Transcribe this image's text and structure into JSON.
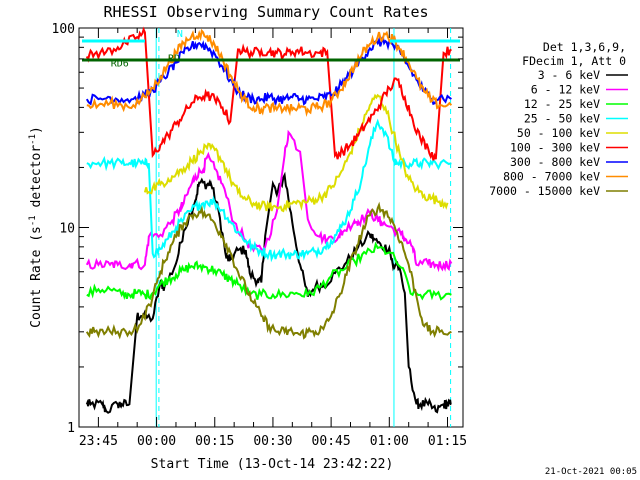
{
  "chart_data": {
    "type": "line",
    "title": "RHESSI Observing Summary Count Rates",
    "xlabel": "Start Time (13-Oct-14 23:42:22)",
    "ylabel": "Count Rate (s",
    "ylabel_sup": "-1",
    "ylabel_rest": " detector",
    "ylabel_close": ")",
    "yscale": "log",
    "ylim": [
      1,
      100
    ],
    "xlim_min": [
      -2,
      97
    ],
    "y_ticks": [
      {
        "v": 1,
        "label": "1"
      },
      {
        "v": 10,
        "label": "10"
      },
      {
        "v": 100,
        "label": "100"
      }
    ],
    "x_ticks": [
      {
        "m": 3,
        "label": "23:45"
      },
      {
        "m": 18,
        "label": "00:00"
      },
      {
        "m": 33,
        "label": "00:15"
      },
      {
        "m": 48,
        "label": "00:30"
      },
      {
        "m": 63,
        "label": "00:45"
      },
      {
        "m": 78,
        "label": "01:00"
      },
      {
        "m": 93,
        "label": "01:15"
      }
    ],
    "legend_header": [
      "Det 1,3,6,9,",
      "FDecim 1, Att 0"
    ],
    "legend_placement": "right",
    "series": [
      {
        "name": "3 - 6 keV",
        "color": "#000000",
        "min": [
          0,
          1,
          4,
          5,
          8,
          9,
          11,
          13,
          14,
          17,
          19,
          20,
          23,
          25,
          28,
          29,
          31,
          32,
          34,
          36,
          37,
          39,
          41,
          42,
          44,
          45,
          46,
          48,
          49,
          51,
          53,
          55,
          57,
          59,
          61,
          64,
          67,
          70,
          73,
          74,
          76,
          78,
          79,
          80,
          82,
          83,
          85,
          86,
          88,
          90,
          92,
          93,
          94
        ],
        "val": [
          1.3,
          1.3,
          1.3,
          1.2,
          1.3,
          1.3,
          1.3,
          3.6,
          3.6,
          3.5,
          5.3,
          5.0,
          6.6,
          9.6,
          13.7,
          16.8,
          16.4,
          16.6,
          12.1,
          7.0,
          6.9,
          7.7,
          7.7,
          5.9,
          5.4,
          5.3,
          9.1,
          16.6,
          14.6,
          18.3,
          10.6,
          6.5,
          4.5,
          5.1,
          5.1,
          5.9,
          6.7,
          8.0,
          9.2,
          8.8,
          8.0,
          7.9,
          6.3,
          6.7,
          4.7,
          2.0,
          1.3,
          1.3,
          1.3,
          1.2,
          1.3,
          1.3,
          1.3
        ]
      },
      {
        "name": "6 - 12 keV",
        "color": "#ff00ff",
        "min": [
          0,
          3,
          6,
          8,
          11,
          12,
          15,
          16,
          19,
          22,
          24,
          25,
          27,
          28,
          30,
          31,
          33,
          35,
          38,
          41,
          43,
          46,
          49,
          51,
          52,
          55,
          57,
          60,
          62,
          65,
          66,
          69,
          70,
          73,
          75,
          76,
          78,
          81,
          82,
          84,
          85,
          88,
          90,
          92,
          94
        ],
        "val": [
          6.5,
          6.5,
          6.5,
          6.5,
          6.5,
          6.6,
          6.5,
          9.0,
          9.2,
          10.8,
          12.3,
          13.2,
          16.5,
          18.2,
          19.4,
          22.5,
          19.7,
          16.5,
          10.6,
          8.6,
          7.7,
          8.0,
          12.0,
          23.0,
          30.0,
          24.0,
          11.0,
          9.0,
          8.7,
          9.1,
          9.5,
          10.8,
          10.7,
          11.8,
          11.0,
          10.6,
          10.1,
          9.3,
          8.8,
          8.0,
          6.5,
          6.6,
          6.5,
          6.5,
          6.6
        ]
      },
      {
        "name": "12 - 25 keV",
        "color": "#00ff00",
        "min": [
          0,
          3,
          6,
          9,
          11,
          13,
          15,
          17,
          19,
          21,
          23,
          25,
          27,
          29,
          31,
          33,
          35,
          37,
          39,
          42,
          45,
          48,
          51,
          54,
          57,
          60,
          63,
          66,
          69,
          72,
          75,
          78,
          81,
          84,
          87,
          90,
          94
        ],
        "val": [
          4.6,
          4.9,
          4.9,
          4.6,
          4.6,
          4.7,
          4.6,
          4.7,
          5.2,
          5.5,
          5.8,
          6.1,
          6.4,
          6.4,
          6.3,
          6.1,
          5.8,
          5.5,
          5.2,
          4.6,
          4.6,
          4.6,
          4.6,
          4.7,
          4.6,
          5.0,
          5.7,
          6.1,
          6.8,
          7.4,
          7.9,
          7.5,
          6.3,
          4.6,
          4.6,
          4.6,
          4.6
        ]
      },
      {
        "name": "25 - 50 keV",
        "color": "#00ffff",
        "min": [
          0,
          3,
          6,
          9,
          11,
          13,
          15,
          16,
          17,
          19,
          21,
          23,
          25,
          27,
          29,
          31,
          33,
          35,
          37,
          39,
          41,
          43,
          45,
          47,
          49,
          51,
          53,
          55,
          57,
          59,
          61,
          63,
          65,
          67,
          69,
          71,
          73,
          75,
          77,
          79,
          80,
          82,
          84,
          86,
          88,
          90,
          94
        ],
        "val": [
          21.0,
          21.1,
          21.0,
          21.0,
          21.0,
          21.0,
          20.8,
          21.0,
          7.4,
          7.8,
          8.8,
          10.0,
          11.0,
          12.2,
          13.0,
          13.5,
          13.3,
          12.2,
          10.7,
          9.5,
          8.6,
          7.9,
          7.6,
          7.4,
          7.3,
          7.4,
          7.3,
          7.4,
          7.4,
          7.6,
          7.9,
          8.6,
          9.6,
          11.2,
          13.8,
          18.0,
          26.0,
          34.0,
          30.0,
          22.0,
          21.0,
          21.1,
          20.8,
          21.0,
          21.0,
          21.0,
          21.0
        ]
      },
      {
        "name": "50 - 100 keV",
        "color": "#dddd00",
        "min": [
          15,
          17,
          19,
          21,
          23,
          25,
          27,
          29,
          31,
          33,
          35,
          37,
          39,
          41,
          43,
          45,
          47,
          49,
          51,
          53,
          55,
          57,
          59,
          61,
          63,
          65,
          67,
          69,
          71,
          73,
          75,
          77,
          79,
          81,
          83,
          85,
          87,
          89,
          91,
          93
        ],
        "val": [
          15.0,
          15.8,
          16.5,
          17.5,
          18.5,
          19.8,
          21.5,
          23.5,
          25.0,
          24.5,
          21.5,
          17.5,
          15.0,
          13.8,
          13.2,
          12.8,
          12.7,
          12.6,
          12.8,
          13.2,
          13.3,
          13.5,
          13.8,
          14.5,
          15.8,
          18.0,
          21.5,
          26.5,
          33.0,
          41.0,
          46.0,
          40.0,
          30.0,
          22.0,
          17.5,
          15.5,
          14.5,
          14.0,
          13.5,
          13.3
        ]
      },
      {
        "name": "100 - 300 keV",
        "color": "#ff0000",
        "min": [
          0,
          2,
          5,
          8,
          10,
          13,
          15,
          17,
          19,
          21,
          23,
          25,
          27,
          29,
          31,
          33,
          35,
          37,
          39,
          41,
          43,
          45,
          47,
          49,
          51,
          53,
          55,
          57,
          60,
          62,
          64,
          66,
          68,
          70,
          72,
          74,
          76,
          78,
          80,
          82,
          84,
          86,
          88,
          90,
          92,
          94
        ],
        "val": [
          72,
          74,
          76,
          80,
          84,
          90,
          95,
          23,
          26,
          29,
          33,
          37,
          42,
          45,
          46,
          44,
          40,
          34,
          78,
          76,
          75,
          77,
          76,
          75,
          74,
          76,
          77,
          75,
          75,
          76,
          23,
          24,
          26,
          29,
          33,
          37,
          43,
          50,
          55,
          45,
          35,
          28,
          25,
          22,
          75,
          78
        ]
      },
      {
        "name": "300 - 800 keV",
        "color": "#0000ff",
        "min": [
          0,
          3,
          6,
          9,
          12,
          15,
          17,
          19,
          21,
          23,
          25,
          27,
          29,
          31,
          33,
          35,
          37,
          39,
          41,
          43,
          45,
          47,
          49,
          51,
          53,
          55,
          57,
          59,
          61,
          63,
          65,
          67,
          69,
          71,
          73,
          75,
          77,
          79,
          81,
          83,
          85,
          87,
          89,
          91,
          94
        ],
        "val": [
          44,
          44,
          45,
          44,
          44,
          46,
          49,
          54,
          60,
          67,
          75,
          81,
          84,
          80,
          74,
          64,
          55,
          48,
          45,
          44,
          44,
          45,
          44,
          44,
          45,
          44,
          44,
          44,
          45,
          46,
          50,
          56,
          63,
          71,
          79,
          84,
          86,
          82,
          74,
          64,
          55,
          48,
          44,
          45,
          44
        ]
      },
      {
        "name": "800 - 7000 keV",
        "color": "#ff8c00",
        "min": [
          0,
          3,
          6,
          9,
          12,
          15,
          17,
          19,
          21,
          23,
          25,
          27,
          29,
          31,
          33,
          35,
          37,
          39,
          41,
          43,
          45,
          47,
          49,
          51,
          53,
          55,
          57,
          59,
          61,
          63,
          65,
          67,
          69,
          71,
          73,
          75,
          77,
          79,
          81,
          83,
          85,
          87,
          89,
          91,
          94
        ],
        "val": [
          41,
          41,
          42,
          41,
          41,
          45,
          50,
          57,
          66,
          75,
          84,
          91,
          94,
          91,
          82,
          70,
          58,
          49,
          43,
          40,
          39,
          40,
          39,
          40,
          39,
          40,
          39,
          40,
          41,
          43,
          48,
          55,
          64,
          74,
          83,
          90,
          93,
          88,
          78,
          67,
          56,
          48,
          43,
          41,
          41
        ]
      },
      {
        "name": "7000 - 15000 keV",
        "color": "#7f7f00",
        "min": [
          0,
          2,
          5,
          8,
          11,
          14,
          17,
          19,
          21,
          23,
          25,
          27,
          29,
          31,
          33,
          35,
          37,
          39,
          41,
          43,
          45,
          47,
          49,
          51,
          53,
          55,
          57,
          59,
          61,
          63,
          65,
          67,
          69,
          71,
          73,
          75,
          77,
          79,
          81,
          83,
          85,
          87,
          89,
          91,
          94
        ],
        "val": [
          3.0,
          3.0,
          3.0,
          3.0,
          3.0,
          3.3,
          4.5,
          6.0,
          7.5,
          9.0,
          10.5,
          11.5,
          12.0,
          11.5,
          10.5,
          9.0,
          7.5,
          6.0,
          5.0,
          4.2,
          3.6,
          3.2,
          3.0,
          3.0,
          3.0,
          2.9,
          3.0,
          3.0,
          3.1,
          3.6,
          4.5,
          5.8,
          7.5,
          9.5,
          11.5,
          12.5,
          12.0,
          10.5,
          8.5,
          6.5,
          4.5,
          3.2,
          3.0,
          3.0,
          3.0
        ]
      }
    ],
    "annotations": [
      {
        "text": "RD6",
        "color": "#006400",
        "m": 8.5,
        "v": 64
      },
      {
        "text": "RD",
        "color": "#006400",
        "m": 22.5,
        "v": 68
      },
      {
        "text": "N",
        "color": "#00ffff",
        "m": 24.0,
        "v": 90
      }
    ],
    "reference_lines": [
      {
        "color": "#00ffff",
        "m": 17.9,
        "dash": false
      },
      {
        "color": "#00ffff",
        "m": 18.6,
        "dash": true
      },
      {
        "color": "#00ffff",
        "m": 79.2,
        "dash": false
      },
      {
        "color": "#00ffff",
        "m": 93.8,
        "dash": true
      }
    ]
  },
  "footer": {
    "date": "21-Oct-2021 00:05"
  }
}
